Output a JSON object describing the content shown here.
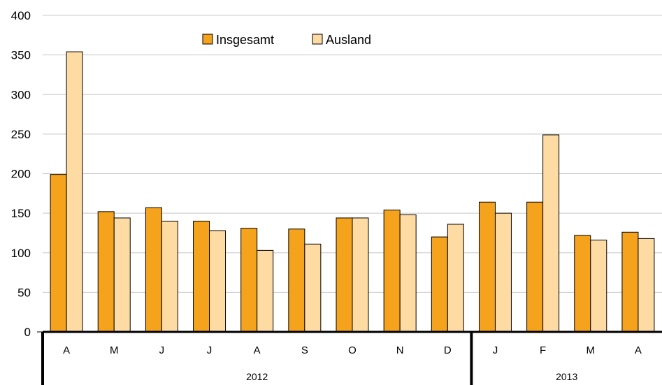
{
  "chart_data": {
    "type": "bar",
    "categories": [
      "A",
      "M",
      "J",
      "J",
      "A",
      "S",
      "O",
      "N",
      "D",
      "J",
      "F",
      "M",
      "A"
    ],
    "groups": [
      {
        "label": "2012",
        "count": 9
      },
      {
        "label": "2013",
        "count": 4
      }
    ],
    "series": [
      {
        "name": "Insgesamt",
        "color": "#F5A21D",
        "values": [
          199,
          152,
          157,
          140,
          131,
          130,
          144,
          154,
          120,
          164,
          164,
          122,
          126
        ]
      },
      {
        "name": "Ausland",
        "color": "#FDDBA3",
        "values": [
          354,
          144,
          140,
          128,
          103,
          111,
          144,
          148,
          136,
          150,
          249,
          116,
          118
        ]
      }
    ],
    "y_ticks": [
      "0",
      "50",
      "100",
      "150",
      "200",
      "250",
      "300",
      "350",
      "400"
    ],
    "ylim": [
      0,
      400
    ],
    "grid": true,
    "legend_position": "top-center"
  }
}
